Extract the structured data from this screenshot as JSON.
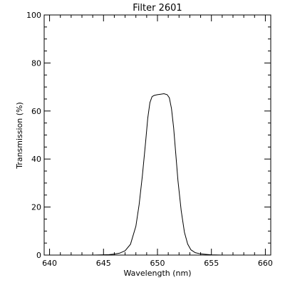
{
  "chart_data": {
    "type": "line",
    "title": "Filter 2601",
    "xlabel": "Wavelength (nm)",
    "ylabel": "Transmission (%)",
    "xlim": [
      639.5,
      660.5
    ],
    "ylim": [
      0,
      100
    ],
    "x_ticks": [
      640,
      645,
      650,
      655,
      660
    ],
    "y_ticks": [
      0,
      20,
      40,
      60,
      80,
      100
    ],
    "grid": false,
    "series": [
      {
        "x": [
          640.0,
          644.0,
          645.0,
          645.5,
          646.0,
          646.5,
          647.0,
          647.5,
          648.0,
          648.3,
          648.6,
          648.9,
          649.1,
          649.3,
          649.5,
          649.7,
          650.0,
          650.3,
          650.6,
          650.9,
          651.1,
          651.3,
          651.5,
          651.7,
          651.9,
          652.2,
          652.5,
          652.8,
          653.1,
          653.5,
          654.0,
          654.5,
          655.0,
          656.0
        ],
        "y": [
          0.0,
          0.0,
          0.1,
          0.2,
          0.4,
          0.8,
          1.8,
          4.5,
          12.0,
          21.0,
          33.0,
          47.0,
          57.0,
          63.5,
          66.0,
          66.5,
          66.8,
          67.0,
          67.2,
          66.8,
          65.5,
          61.0,
          53.0,
          42.0,
          31.0,
          18.5,
          9.5,
          4.6,
          2.2,
          1.0,
          0.5,
          0.3,
          0.1,
          0.0
        ]
      }
    ]
  }
}
